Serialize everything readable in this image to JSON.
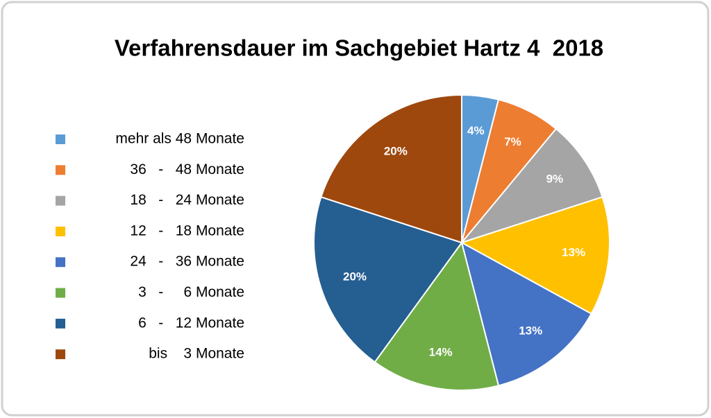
{
  "chart_data": {
    "type": "pie",
    "title": "Verfahrensdauer im Sachgebiet Hartz 4  2018",
    "categories": [
      "mehr als 48 Monate",
      "36   -   48 Monate",
      "18   -   24 Monate",
      "12   -   18 Monate",
      "24   -   36 Monate",
      "3   -     6 Monate",
      "6   -   12 Monate",
      "bis    3 Monate"
    ],
    "values": [
      4,
      7,
      9,
      13,
      13,
      14,
      20,
      20
    ],
    "value_labels": [
      "4%",
      "7%",
      "9%",
      "13%",
      "13%",
      "14%",
      "20%",
      "20%"
    ],
    "colors": [
      "#5b9bd5",
      "#ed7d31",
      "#a5a5a5",
      "#ffc000",
      "#4472c4",
      "#70ad47",
      "#255e91",
      "#9e480e"
    ],
    "legend": "left"
  }
}
